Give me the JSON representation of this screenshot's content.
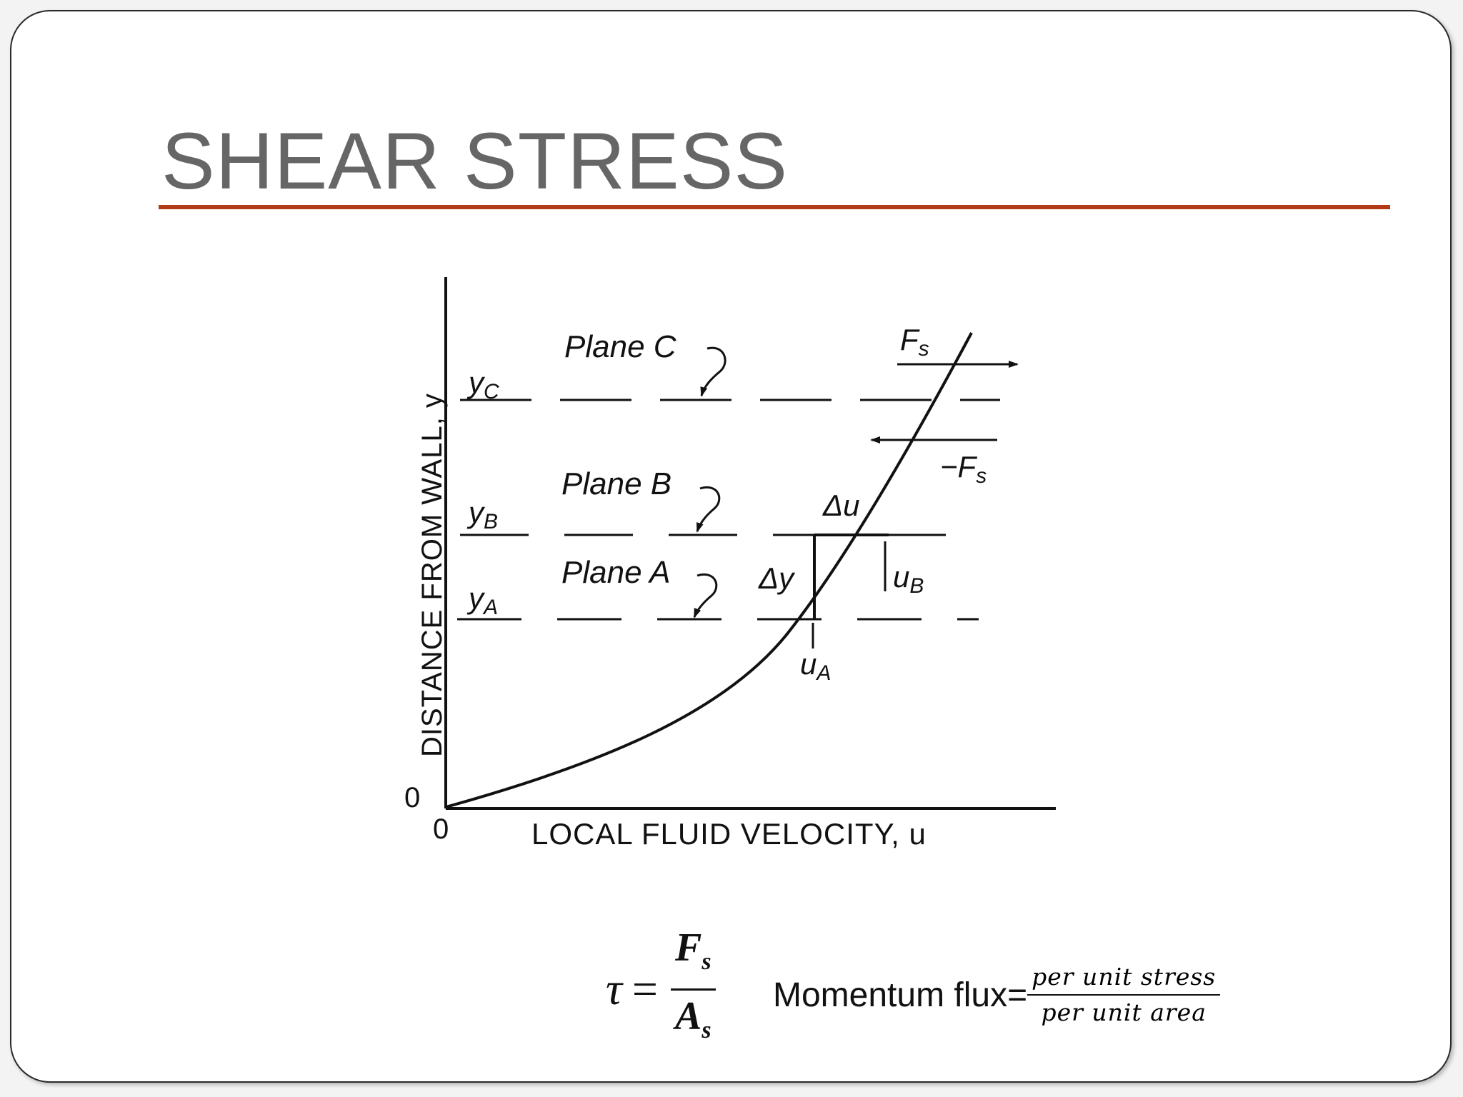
{
  "slide": {
    "title": "SHEAR STRESS",
    "accent_color": "#b23a17"
  },
  "diagram": {
    "y_axis_label": "DISTANCE FROM WALL, y",
    "x_axis_label": "LOCAL FLUID VELOCITY, u",
    "origin_x": "0",
    "origin_y": "0",
    "planes": [
      {
        "label": "Plane C",
        "y_label": "yC"
      },
      {
        "label": "Plane B",
        "y_label": "yB"
      },
      {
        "label": "Plane A",
        "y_label": "yA"
      }
    ],
    "labels": {
      "fs": "Fs",
      "neg_fs": "−Fs",
      "delta_u": "Δu",
      "delta_y": "Δy",
      "u_b": "uB",
      "u_a": "uA"
    }
  },
  "equations": {
    "tau_lhs": "τ",
    "tau_eq": "=",
    "tau_num_main": "F",
    "tau_num_sub": "s",
    "tau_den_main": "A",
    "tau_den_sub": "s",
    "flux_label": "Momentum flux=",
    "flux_num": "per unit stress",
    "flux_den": "per unit area"
  }
}
